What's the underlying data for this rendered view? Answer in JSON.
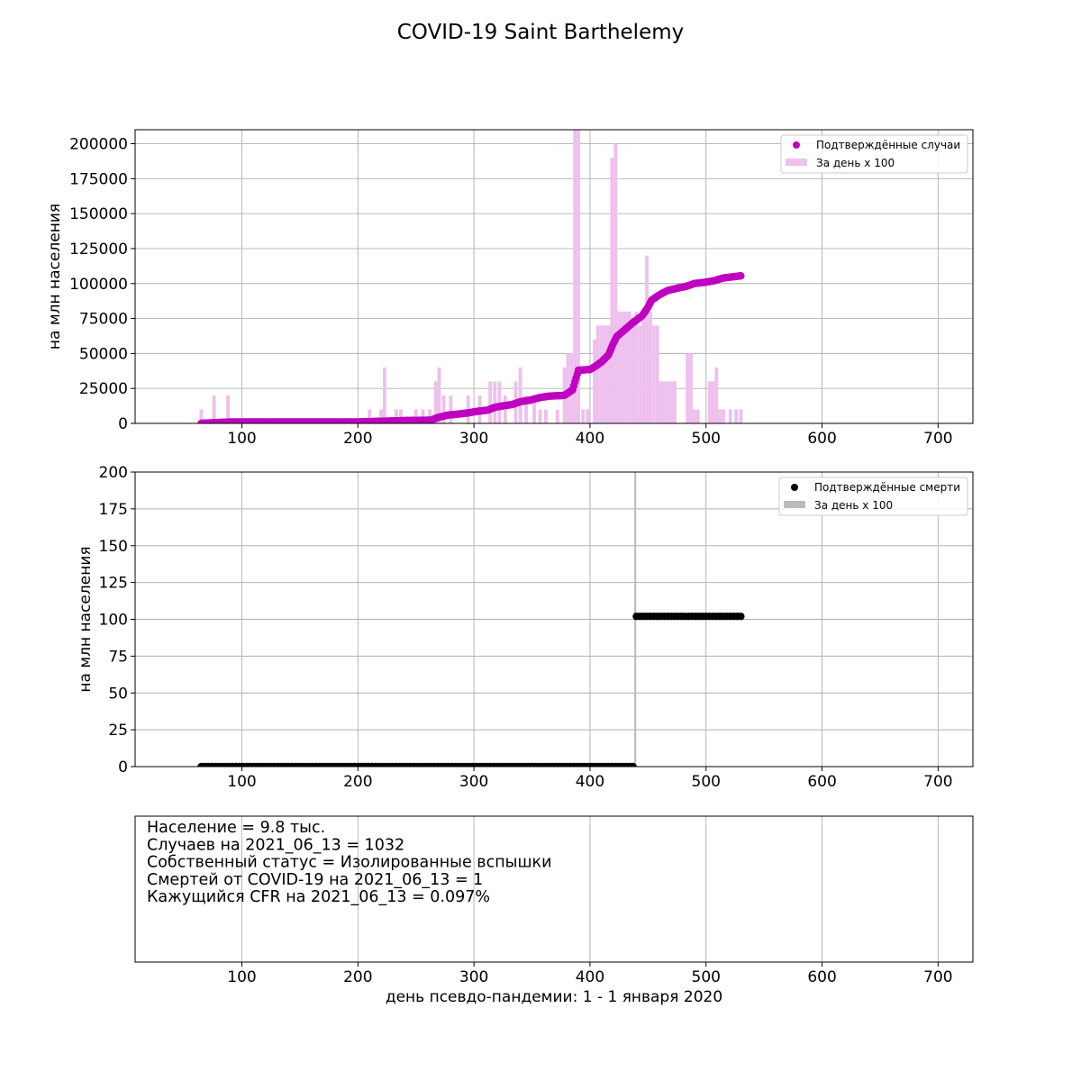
{
  "title": "COVID-19 Saint Barthelemy",
  "chart_data": [
    {
      "type": "scatter+bar",
      "ylabel": "на млн населения",
      "xlim": [
        8,
        730
      ],
      "ylim": [
        0,
        210000
      ],
      "xticks": [
        100,
        200,
        300,
        400,
        500,
        600,
        700
      ],
      "yticks": [
        0,
        25000,
        50000,
        75000,
        100000,
        125000,
        150000,
        175000,
        200000
      ],
      "grid": true,
      "legend_position": "top-right",
      "series": [
        {
          "name": "Подтверждённые случаи",
          "kind": "scatter",
          "color": "#c000c0",
          "points": [
            [
              65,
              0
            ],
            [
              90,
              1000
            ],
            [
              150,
              1000
            ],
            [
              200,
              1000
            ],
            [
              220,
              1500
            ],
            [
              240,
              2000
            ],
            [
              263,
              2300
            ],
            [
              270,
              4500
            ],
            [
              278,
              6000
            ],
            [
              285,
              6500
            ],
            [
              295,
              7500
            ],
            [
              302,
              8500
            ],
            [
              312,
              9500
            ],
            [
              318,
              11500
            ],
            [
              325,
              12500
            ],
            [
              333,
              13500
            ],
            [
              340,
              15500
            ],
            [
              348,
              16500
            ],
            [
              357,
              18500
            ],
            [
              365,
              19500
            ],
            [
              378,
              20000
            ],
            [
              385,
              24000
            ],
            [
              390,
              38000
            ],
            [
              400,
              38500
            ],
            [
              405,
              41000
            ],
            [
              410,
              44000
            ],
            [
              416,
              49000
            ],
            [
              420,
              57000
            ],
            [
              423,
              62000
            ],
            [
              430,
              67000
            ],
            [
              437,
              72000
            ],
            [
              445,
              77000
            ],
            [
              450,
              83000
            ],
            [
              453,
              88000
            ],
            [
              460,
              92000
            ],
            [
              467,
              95000
            ],
            [
              472,
              96000
            ],
            [
              477,
              97000
            ],
            [
              483,
              98000
            ],
            [
              490,
              100000
            ],
            [
              500,
              101000
            ],
            [
              507,
              102000
            ],
            [
              515,
              104000
            ],
            [
              525,
              105000
            ],
            [
              530,
              105500
            ]
          ]
        },
        {
          "name": "За день х 100",
          "kind": "bar",
          "color": "#eec0ee",
          "bars": [
            [
              65,
              10000
            ],
            [
              76,
              20000
            ],
            [
              88,
              20000
            ],
            [
              210,
              10000
            ],
            [
              220,
              10000
            ],
            [
              223,
              40000
            ],
            [
              233,
              10000
            ],
            [
              237,
              10000
            ],
            [
              250,
              10000
            ],
            [
              256,
              10000
            ],
            [
              262,
              10000
            ],
            [
              267,
              30000
            ],
            [
              270,
              40000
            ],
            [
              274,
              20000
            ],
            [
              280,
              20000
            ],
            [
              295,
              20000
            ],
            [
              305,
              20000
            ],
            [
              314,
              30000
            ],
            [
              318,
              30000
            ],
            [
              322,
              30000
            ],
            [
              327,
              20000
            ],
            [
              336,
              30000
            ],
            [
              340,
              40000
            ],
            [
              345,
              20000
            ],
            [
              352,
              20000
            ],
            [
              357,
              10000
            ],
            [
              362,
              10000
            ],
            [
              372,
              10000
            ],
            [
              378,
              40000
            ],
            [
              381,
              50000
            ],
            [
              384,
              50000
            ],
            [
              387,
              210000
            ],
            [
              390,
              210000
            ],
            [
              394,
              10000
            ],
            [
              398,
              10000
            ],
            [
              404,
              60000
            ],
            [
              407,
              70000
            ],
            [
              410,
              70000
            ],
            [
              413,
              70000
            ],
            [
              416,
              70000
            ],
            [
              419,
              190000
            ],
            [
              422,
              200000
            ],
            [
              425,
              80000
            ],
            [
              428,
              80000
            ],
            [
              431,
              80000
            ],
            [
              434,
              80000
            ],
            [
              437,
              70000
            ],
            [
              440,
              80000
            ],
            [
              443,
              70000
            ],
            [
              446,
              80000
            ],
            [
              449,
              120000
            ],
            [
              452,
              80000
            ],
            [
              455,
              70000
            ],
            [
              458,
              70000
            ],
            [
              461,
              30000
            ],
            [
              464,
              30000
            ],
            [
              467,
              30000
            ],
            [
              470,
              30000
            ],
            [
              473,
              30000
            ],
            [
              484,
              50000
            ],
            [
              487,
              50000
            ],
            [
              490,
              10000
            ],
            [
              493,
              10000
            ],
            [
              503,
              30000
            ],
            [
              506,
              30000
            ],
            [
              509,
              40000
            ],
            [
              512,
              10000
            ],
            [
              515,
              10000
            ],
            [
              521,
              10000
            ],
            [
              526,
              10000
            ],
            [
              530,
              10000
            ]
          ]
        }
      ]
    },
    {
      "type": "scatter+bar",
      "ylabel": "на млн населения",
      "xlim": [
        8,
        730
      ],
      "ylim": [
        0,
        200
      ],
      "xticks": [
        100,
        200,
        300,
        400,
        500,
        600,
        700
      ],
      "yticks": [
        0,
        25,
        50,
        75,
        100,
        125,
        150,
        175,
        200
      ],
      "grid": true,
      "legend_position": "top-right",
      "series": [
        {
          "name": "Подтверждённые смерти",
          "kind": "scatter-step",
          "color": "#000000",
          "segments": [
            {
              "x_from": 65,
              "x_to": 439,
              "y": 0
            },
            {
              "x_from": 440,
              "x_to": 530,
              "y": 102
            }
          ]
        },
        {
          "name": "За день х 100",
          "kind": "bar",
          "color": "#bbbbbb",
          "bars": [
            [
              439,
              10200
            ]
          ]
        }
      ]
    },
    {
      "type": "text",
      "xlim": [
        8,
        730
      ],
      "xticks": [
        100,
        200,
        300,
        400,
        500,
        600,
        700
      ],
      "xlabel": "день псевдо-пандемии: 1 - 1 января 2020",
      "grid": true,
      "lines": [
        "Население = 9.8 тыс.",
        "Случаев на 2021_06_13 = 1032",
        "Собственный статус = Изолированные вспышки",
        "Смертей от COVID-19 на 2021_06_13 = 1",
        "Кажущийся CFR на 2021_06_13 = 0.097%"
      ]
    }
  ]
}
